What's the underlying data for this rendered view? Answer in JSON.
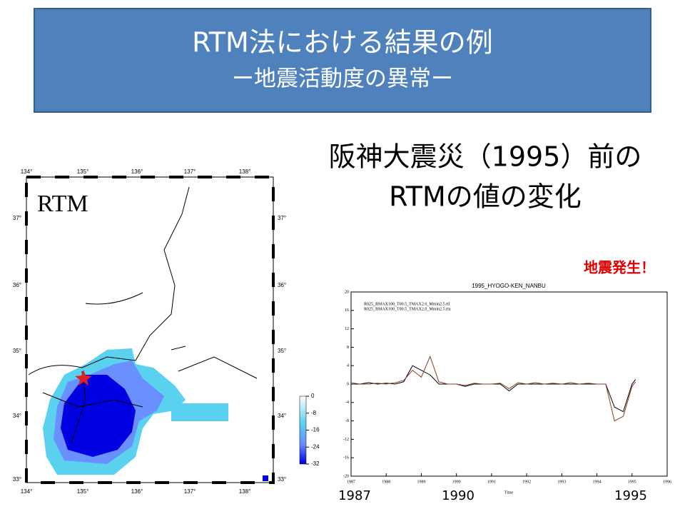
{
  "slide": {
    "title": "RTM法における結果の例",
    "subtitle": "ー地震活動度の異常ー",
    "heading": [
      "阪神大震災（1995）前の",
      "RTMの値の変化"
    ],
    "annotation": "地震発生！",
    "year_labels": [
      "1987",
      "1990",
      "1995"
    ]
  },
  "map": {
    "label": "RTM",
    "lon_labels": [
      "134°",
      "135°",
      "136°",
      "137°",
      "138°"
    ],
    "lat_labels": [
      "37°",
      "36°",
      "35°",
      "34°",
      "33°"
    ],
    "colorbar_ticks": [
      0,
      -8,
      -16,
      -24,
      -32
    ]
  },
  "chart_data": {
    "type": "line",
    "title": "1995_HYOGO-KEN_NANBU",
    "x_label": "Time",
    "x": [
      1987,
      1987.25,
      1987.5,
      1987.75,
      1988,
      1988.25,
      1988.5,
      1988.75,
      1989,
      1989.25,
      1989.5,
      1989.75,
      1990,
      1990.25,
      1990.5,
      1990.75,
      1991,
      1991.25,
      1991.5,
      1991.75,
      1992,
      1992.25,
      1992.5,
      1992.75,
      1993,
      1993.25,
      1993.5,
      1993.75,
      1994,
      1994.25,
      1994.5,
      1994.75,
      1995,
      1995.1
    ],
    "series": [
      {
        "name": "R025_RMAX100_T00.5_TMAX2.0_Mmin2.5.rtl",
        "color": "#000000",
        "values": [
          0,
          0,
          0.3,
          0,
          0.2,
          0,
          0.5,
          4,
          3,
          2,
          0,
          0,
          0,
          -0.5,
          0,
          0,
          0,
          0,
          -1.5,
          0,
          0,
          0,
          0,
          0,
          0,
          0,
          0,
          0,
          0,
          0,
          -5,
          -6,
          0,
          1
        ]
      },
      {
        "name": "R025_RMAX100_T00.5_TMAX2.0_Mmin2.5.rtu",
        "color": "#8b3a2a",
        "values": [
          0.3,
          0,
          0,
          0.2,
          0,
          0.3,
          0.8,
          3,
          1.5,
          6,
          0.5,
          0,
          0,
          -0.3,
          0.2,
          0,
          0,
          0.2,
          -1,
          0.3,
          0,
          0.3,
          0,
          0.2,
          0,
          0.3,
          0,
          0.2,
          0,
          0,
          -8,
          -7,
          -0.5,
          0.5
        ]
      }
    ],
    "xlim": [
      1987,
      1996
    ],
    "xticks": [
      1987,
      1988,
      1989,
      1990,
      1991,
      1992,
      1993,
      1994,
      1995,
      1996
    ],
    "ylim": [
      -20,
      20
    ],
    "yticks": [
      -20,
      -16,
      -12,
      -8,
      -4,
      0,
      4,
      8,
      12,
      16,
      20
    ]
  }
}
